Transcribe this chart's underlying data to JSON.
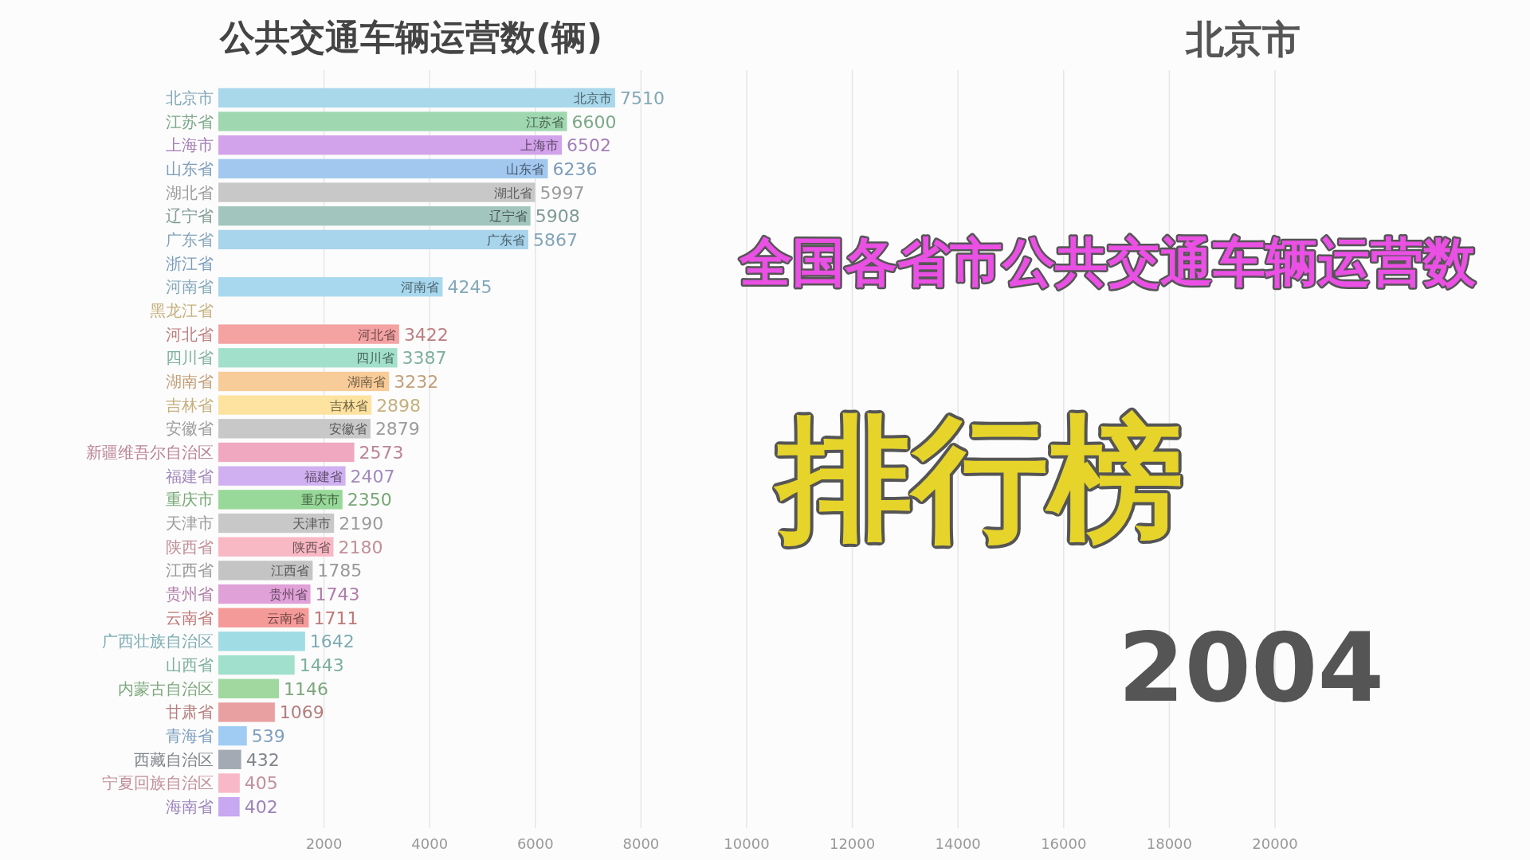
{
  "chart_data": {
    "type": "bar",
    "orientation": "horizontal",
    "title": "公共交通车辆运营数(辆)",
    "annotations": [
      "北京市",
      "全国各省市公共交通车辆运营数",
      "排行榜",
      "2004"
    ],
    "categories": [
      "北京市",
      "江苏省",
      "上海市",
      "山东省",
      "湖北省",
      "辽宁省",
      "广东省",
      "浙江省",
      "河南省",
      "黑龙江省",
      "河北省",
      "四川省",
      "湖南省",
      "吉林省",
      "安徽省",
      "新疆维吾尔自治区",
      "福建省",
      "重庆市",
      "天津市",
      "陕西省",
      "江西省",
      "贵州省",
      "云南省",
      "广西壮族自治区",
      "山西省",
      "内蒙古自治区",
      "甘肃省",
      "青海省",
      "西藏自治区",
      "宁夏回族自治区",
      "海南省"
    ],
    "values": [
      7510,
      6600,
      6502,
      6236,
      5997,
      5908,
      5867,
      null,
      4245,
      null,
      3422,
      3387,
      3232,
      2898,
      2879,
      2573,
      2407,
      2350,
      2190,
      2180,
      1785,
      1743,
      1711,
      1642,
      1443,
      1146,
      1069,
      539,
      432,
      405,
      402
    ],
    "colors": [
      "#a8d8ea",
      "#9fd8b0",
      "#d2a2ea",
      "#a2c8f0",
      "#c8c8c8",
      "#a2c6be",
      "#a8d4ec",
      "#9ec8f0",
      "#a8d8ee",
      "#fde3a0",
      "#f4a2a2",
      "#a2e0cc",
      "#f8cc98",
      "#fde2a0",
      "#c8c8c8",
      "#f0a8c0",
      "#d0b0f0",
      "#98d898",
      "#c8c8c8",
      "#f8b8c4",
      "#c4c4c4",
      "#e0a0d8",
      "#f49a98",
      "#a0dce4",
      "#a0e0cc",
      "#a0d8a0",
      "#e8a0a0",
      "#a0ccf4",
      "#a4aab4",
      "#f8b8c8",
      "#c8a8f0"
    ],
    "xlim": [
      0,
      20000
    ],
    "xticks": [
      2000,
      4000,
      6000,
      8000,
      10000,
      12000,
      14000,
      16000,
      18000,
      20000
    ],
    "grid": "x",
    "data_labels": true
  }
}
